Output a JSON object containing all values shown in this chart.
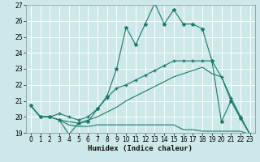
{
  "xlabel": "Humidex (Indice chaleur)",
  "bg_color": "#cce8e8",
  "grid_color": "#ffffff",
  "line_color": "#1a7a6a",
  "xlim": [
    -0.5,
    23.5
  ],
  "ylim": [
    19,
    27
  ],
  "yticks": [
    19,
    20,
    21,
    22,
    23,
    24,
    25,
    26,
    27
  ],
  "xticks": [
    0,
    1,
    2,
    3,
    4,
    5,
    6,
    7,
    8,
    9,
    10,
    11,
    12,
    13,
    14,
    15,
    16,
    17,
    18,
    19,
    20,
    21,
    22,
    23
  ],
  "line1_x": [
    0,
    1,
    2,
    3,
    4,
    5,
    6,
    7,
    8,
    9,
    10,
    11,
    12,
    13,
    14,
    15,
    16,
    17,
    18,
    19,
    20,
    21,
    22,
    23
  ],
  "line1_y": [
    20.7,
    20.0,
    20.0,
    19.8,
    18.9,
    19.6,
    19.7,
    20.5,
    21.3,
    23.0,
    25.6,
    24.5,
    25.8,
    27.1,
    25.8,
    26.7,
    25.8,
    25.8,
    25.5,
    23.5,
    19.7,
    21.0,
    19.9,
    18.9
  ],
  "line2_x": [
    0,
    1,
    2,
    3,
    4,
    5,
    6,
    7,
    8,
    9,
    10,
    11,
    12,
    13,
    14,
    15,
    16,
    17,
    18,
    19,
    20,
    21,
    22,
    23
  ],
  "line2_y": [
    20.7,
    20.0,
    20.0,
    20.2,
    20.0,
    19.8,
    20.0,
    20.5,
    21.2,
    21.8,
    22.0,
    22.3,
    22.6,
    22.9,
    23.2,
    23.5,
    23.5,
    23.5,
    23.5,
    23.5,
    22.5,
    21.2,
    20.0,
    18.9
  ],
  "line3_x": [
    0,
    1,
    2,
    3,
    4,
    5,
    6,
    7,
    8,
    9,
    10,
    11,
    12,
    13,
    14,
    15,
    16,
    17,
    18,
    19,
    20,
    21,
    22,
    23
  ],
  "line3_y": [
    20.7,
    20.0,
    20.0,
    19.8,
    19.5,
    19.4,
    19.4,
    19.5,
    19.5,
    19.5,
    19.5,
    19.5,
    19.5,
    19.5,
    19.5,
    19.5,
    19.2,
    19.2,
    19.1,
    19.1,
    19.1,
    19.1,
    19.1,
    18.9
  ],
  "line4_x": [
    0,
    1,
    2,
    3,
    4,
    5,
    6,
    7,
    8,
    9,
    10,
    11,
    12,
    13,
    14,
    15,
    16,
    17,
    18,
    19,
    20,
    21,
    22,
    23
  ],
  "line4_y": [
    20.7,
    20.0,
    20.0,
    19.8,
    19.7,
    19.6,
    19.8,
    20.0,
    20.3,
    20.6,
    21.0,
    21.3,
    21.6,
    21.9,
    22.2,
    22.5,
    22.7,
    22.9,
    23.1,
    22.7,
    22.5,
    21.0,
    20.0,
    18.9
  ]
}
